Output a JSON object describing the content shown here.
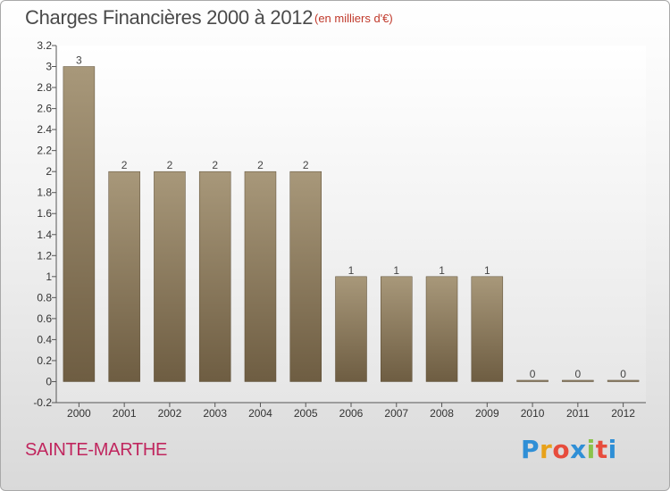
{
  "header": {
    "title": "Charges Financières 2000 à 2012",
    "unit": "(en milliers d'€)"
  },
  "footer": {
    "commune": "SAINTE-MARTHE",
    "brand": "Proxiti"
  },
  "colors": {
    "bar_light": "#a8987a",
    "bar_dark": "#6e5d42",
    "commune": "#c0265e"
  },
  "chart_data": {
    "type": "bar",
    "categories": [
      "2000",
      "2001",
      "2002",
      "2003",
      "2004",
      "2005",
      "2006",
      "2007",
      "2008",
      "2009",
      "2010",
      "2011",
      "2012"
    ],
    "values": [
      3,
      2,
      2,
      2,
      2,
      2,
      1,
      1,
      1,
      1,
      0,
      0,
      0
    ],
    "data_labels": [
      "3",
      "2",
      "2",
      "2",
      "2",
      "2",
      "1",
      "1",
      "1",
      "1",
      "0",
      "0",
      "0"
    ],
    "title": "Charges Financières 2000 à 2012",
    "subtitle": "(en milliers d'€)",
    "xlabel": "",
    "ylabel": "",
    "ylim": [
      -0.2,
      3.2
    ],
    "yticks": [
      -0.2,
      0,
      0.2,
      0.4,
      0.6,
      0.8,
      1,
      1.2,
      1.4,
      1.6,
      1.8,
      2,
      2.2,
      2.4,
      2.6,
      2.8,
      3,
      3.2
    ],
    "ytick_labels": [
      "-0.2",
      "0",
      "0.2",
      "0.4",
      "0.6",
      "0.8",
      "1",
      "1.2",
      "1.4",
      "1.6",
      "1.8",
      "2",
      "2.2",
      "2.4",
      "2.6",
      "2.8",
      "3",
      "3.2"
    ],
    "grid": false,
    "legend": "none"
  }
}
